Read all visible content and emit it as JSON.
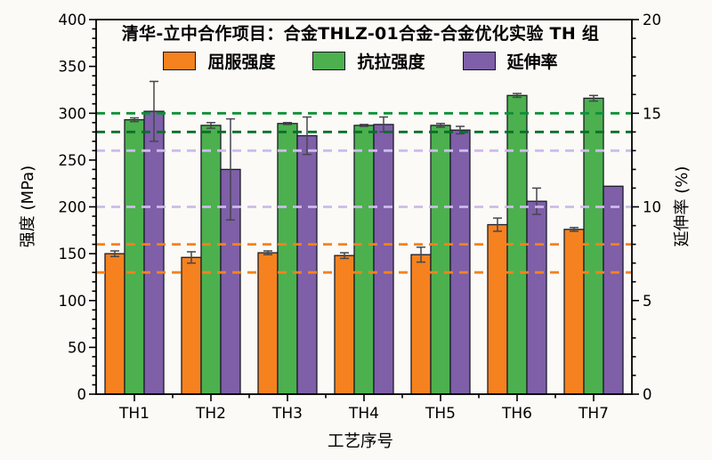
{
  "figure": {
    "background": "#FBFAF6"
  },
  "chart_data": {
    "type": "bar",
    "title": "清华-立中合作项目：合金THLZ-01合金-合金优化实验 TH 组",
    "xlabel": "工艺序号",
    "ylabel_left": "强度 (MPa)",
    "ylabel_right": "延伸率 (%)",
    "categories": [
      "TH1",
      "TH2",
      "TH3",
      "TH4",
      "TH5",
      "TH6",
      "TH7"
    ],
    "left_axis": {
      "min": 0,
      "max": 400,
      "ticks": [
        0,
        50,
        100,
        150,
        200,
        250,
        300,
        350,
        400
      ],
      "minor_step": 10
    },
    "right_axis": {
      "min": 0,
      "max": 20,
      "ticks": [
        0,
        5,
        10,
        15,
        20
      ],
      "minor_step": 1
    },
    "series": [
      {
        "name": "屈服强度",
        "axis": "left",
        "color": "#F5821F",
        "values": [
          150,
          146,
          151,
          148,
          149,
          181,
          176
        ],
        "errors": [
          3,
          6,
          2,
          3,
          8,
          7,
          2
        ]
      },
      {
        "name": "抗拉强度",
        "axis": "left",
        "color": "#4CB04E",
        "values": [
          293,
          287,
          289,
          287,
          287,
          319,
          316
        ],
        "errors": [
          2,
          3,
          1,
          1,
          2,
          2,
          3
        ]
      },
      {
        "name": "延伸率",
        "axis": "right",
        "color": "#7E5FA8",
        "values": [
          15.1,
          12.0,
          13.8,
          14.4,
          14.1,
          10.3,
          11.1
        ],
        "errors": [
          1.6,
          2.7,
          1.0,
          0.4,
          0.2,
          0.7,
          0
        ]
      }
    ],
    "reference_lines": [
      {
        "axis": "left",
        "value": 300,
        "color": "#0E9038"
      },
      {
        "axis": "left",
        "value": 280,
        "color": "#0B6F2B"
      },
      {
        "axis": "right",
        "value": 13,
        "color": "#CDBBEB"
      },
      {
        "axis": "right",
        "value": 10,
        "color": "#CDBBEB"
      },
      {
        "axis": "left",
        "value": 160,
        "color": "#F5821F"
      },
      {
        "axis": "left",
        "value": 130,
        "color": "#F5821F"
      }
    ],
    "legend_position": "top-inside",
    "grid": false,
    "bar_edge_color": "#1c1c28",
    "error_bar_color": "#46464e",
    "axis_color": "#000000"
  }
}
